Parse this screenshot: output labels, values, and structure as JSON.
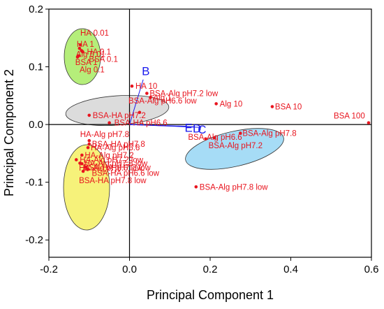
{
  "chart_data": {
    "type": "scatter",
    "title": "",
    "xlabel": "Principal Component 1",
    "ylabel": "Principal Component 2",
    "xlim": [
      -0.2,
      0.6
    ],
    "ylim": [
      -0.23,
      0.2
    ],
    "xticks": [
      "-0.2",
      "0.0",
      "0.2",
      "0.4",
      "0.6"
    ],
    "yticks": [
      "0.2",
      "0.1",
      "0.0",
      "-0.1",
      "-0.2"
    ],
    "xtick_values": [
      -0.2,
      0.0,
      0.2,
      0.4,
      0.6
    ],
    "ytick_values": [
      0.2,
      0.1,
      0.0,
      -0.1,
      -0.2
    ],
    "colors": {
      "points": "#e8141e",
      "vectors": "#1a1aee",
      "ellipse_green": "#b5ee7a",
      "ellipse_gray": "#dcdcdc",
      "ellipse_blue": "#a6dcf6",
      "ellipse_yellow": "#f6f27a"
    },
    "points": [
      {
        "label": "HA 0.01",
        "x": -0.122,
        "y": 0.138
      },
      {
        "label": "HA 1",
        "x": -0.124,
        "y": 0.132
      },
      {
        "label": "Alg 0.01",
        "x": -0.119,
        "y": 0.128
      },
      {
        "label": "HA 0.1",
        "x": -0.116,
        "y": 0.126
      },
      {
        "label": "BSA 0.1",
        "x": -0.118,
        "y": 0.127
      },
      {
        "label": "BSA 1",
        "x": -0.126,
        "y": 0.119
      },
      {
        "label": "Alg 0.1",
        "x": -0.129,
        "y": 0.117
      },
      {
        "label": "HA 10",
        "x": 0.006,
        "y": 0.0665
      },
      {
        "label": "BSA-Alg pH7.2 low",
        "x": 0.043,
        "y": 0.054
      },
      {
        "label": "Alg 1",
        "x": 0.052,
        "y": 0.047
      },
      {
        "label": "Alg 10",
        "x": 0.215,
        "y": 0.036
      },
      {
        "label": "BSA 10",
        "x": 0.354,
        "y": 0.031
      },
      {
        "label": "BSA 100",
        "x": 0.593,
        "y": 0.003
      },
      {
        "label": "BSA-Alg pH6.6 low",
        "x": 0.025,
        "y": 0.021
      },
      {
        "label": "BSA-HA pH7.2",
        "x": -0.1,
        "y": 0.016
      },
      {
        "label": "BSA-HA pH6.6",
        "x": -0.05,
        "y": 0.003
      },
      {
        "label": "BSA-Alg pH7.8",
        "x": 0.275,
        "y": -0.015
      },
      {
        "label": "BSA-Alg pH6.6",
        "x": 0.211,
        "y": -0.023
      },
      {
        "label": "BSA-Alg pH7.2",
        "x": 0.189,
        "y": -0.025
      },
      {
        "label": "HA-Alg pH7.8",
        "x": -0.1,
        "y": -0.028
      },
      {
        "label": "BSA-HA pH7.8",
        "x": -0.1,
        "y": -0.034
      },
      {
        "label": "HA-Alg pH6.6",
        "x": -0.103,
        "y": -0.04
      },
      {
        "label": "HA-Alg pH7.2",
        "x": -0.118,
        "y": -0.053
      },
      {
        "label": "HA-Alg pH7.2 low",
        "x": -0.132,
        "y": -0.061
      },
      {
        "label": "HA-Alg pH7.8 low",
        "x": -0.123,
        "y": -0.067
      },
      {
        "label": "BSA-HA pH7.2 low",
        "x": -0.118,
        "y": -0.068
      },
      {
        "label": "HA-Alg pH6.6 low",
        "x": -0.108,
        "y": -0.074
      },
      {
        "label": "BSA-HA pH6.6 low",
        "x": -0.104,
        "y": -0.078
      },
      {
        "label": "BSA-HA pH7.8 low",
        "x": -0.115,
        "y": -0.081
      },
      {
        "label": "BSA-Alg pH7.8 low",
        "x": 0.165,
        "y": -0.108
      }
    ],
    "vectors": [
      {
        "label": "B",
        "x": 0.034,
        "y": 0.078
      },
      {
        "label": "E",
        "x": 0.142,
        "y": -0.003
      },
      {
        "label": "D",
        "x": 0.162,
        "y": -0.004
      },
      {
        "label": "C",
        "x": 0.178,
        "y": -0.005
      }
    ]
  }
}
